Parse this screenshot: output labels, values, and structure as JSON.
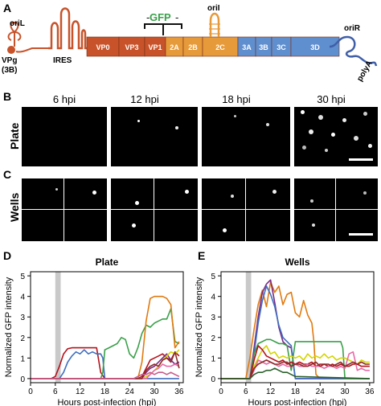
{
  "panels": {
    "a": "A",
    "b": "B",
    "c": "C",
    "d": "D",
    "e": "E"
  },
  "genome": {
    "gfp": "GFP",
    "oriL": "oriL",
    "vpg": "VPg",
    "vpg_sub": "(3B)",
    "ires": "IRES",
    "oriI": "oriI",
    "oriR": "oriR",
    "polyA": "polyA",
    "segments": [
      {
        "label": "VP0",
        "color": "#c8532a"
      },
      {
        "label": "VP3",
        "color": "#c8532a"
      },
      {
        "label": "VP1",
        "color": "#c8532a"
      },
      {
        "label": "2A",
        "color": "#e79a3a"
      },
      {
        "label": "2B",
        "color": "#e79a3a"
      },
      {
        "label": "2C",
        "color": "#e79a3a"
      },
      {
        "label": "3A",
        "color": "#5f8fcf"
      },
      {
        "label": "3B",
        "color": "#5f8fcf"
      },
      {
        "label": "3C",
        "color": "#5f8fcf"
      },
      {
        "label": "3D",
        "color": "#5f8fcf"
      }
    ]
  },
  "timepoints": [
    "6 hpi",
    "12 hpi",
    "18 hpi",
    "30 hpi"
  ],
  "rows": {
    "plate": "Plate",
    "wells": "Wells"
  },
  "chart_data": [
    {
      "type": "line",
      "title": "Plate",
      "xlabel": "Hours post-infection (hpi)",
      "ylabel": "Normalized GFP intensity",
      "xlim": [
        0,
        37
      ],
      "ylim": [
        -0.2,
        5.2
      ],
      "xticks": [
        0,
        6,
        12,
        18,
        24,
        30,
        36
      ],
      "yticks": [
        0,
        1,
        2,
        3,
        4,
        5
      ],
      "shaded_band": [
        6,
        7.3
      ],
      "series": [
        {
          "color": "#b5121b",
          "x": [
            0,
            5,
            6,
            7,
            8,
            9,
            10,
            11,
            12,
            13,
            14,
            15,
            16,
            17,
            18,
            19,
            20,
            21,
            22,
            23,
            24,
            25,
            26,
            27,
            28,
            29,
            30,
            31,
            32,
            33,
            34,
            35,
            36
          ],
          "y": [
            0,
            0,
            0.1,
            0.6,
            1.2,
            1.45,
            1.5,
            1.5,
            1.5,
            1.5,
            1.5,
            1.5,
            1.5,
            0.3,
            0,
            0,
            0,
            0,
            0,
            0,
            0,
            0,
            0,
            0.1,
            0.5,
            0.9,
            1.0,
            1.1,
            1.2,
            1.0,
            0.9,
            1.3,
            1.1
          ]
        },
        {
          "color": "#3f6fbf",
          "x": [
            0,
            7,
            8,
            9,
            10,
            11,
            12,
            13,
            14,
            15,
            16,
            17,
            17.5,
            18,
            36
          ],
          "y": [
            0,
            0,
            0.3,
            0.8,
            1.1,
            1.3,
            1.2,
            1.4,
            1.2,
            1.3,
            1.2,
            1.2,
            1.0,
            0,
            0
          ]
        },
        {
          "color": "#3aa04a",
          "x": [
            0,
            17,
            17.5,
            18,
            19,
            20,
            21,
            22,
            23,
            24,
            25,
            26,
            27,
            28,
            29,
            30,
            31,
            32,
            33,
            34,
            35,
            36
          ],
          "y": [
            0,
            0,
            0.3,
            1.4,
            1.5,
            1.6,
            1.7,
            2.0,
            1.9,
            1.2,
            1.0,
            1.5,
            2.2,
            2.6,
            2.5,
            2.7,
            2.8,
            2.9,
            2.9,
            3.4,
            1.8,
            1.7
          ]
        },
        {
          "color": "#e07a10",
          "x": [
            0,
            26,
            27,
            28,
            29,
            30,
            31,
            32,
            33,
            34,
            35,
            36
          ],
          "y": [
            0,
            0,
            0.8,
            2.8,
            3.9,
            4.0,
            4.0,
            4.0,
            3.9,
            3.6,
            1.5,
            1.8
          ]
        },
        {
          "color": "#7a2a86",
          "x": [
            0,
            27,
            28,
            29,
            30,
            31,
            32,
            33,
            34,
            35,
            36
          ],
          "y": [
            0,
            0,
            0.3,
            0.5,
            0.6,
            0.8,
            1.0,
            1.2,
            0.9,
            0.7,
            0.8
          ]
        },
        {
          "color": "#d4d400",
          "x": [
            0,
            27,
            28,
            29,
            30,
            31,
            32,
            33,
            34,
            35,
            36
          ],
          "y": [
            0,
            0,
            0.1,
            0.2,
            0.4,
            0.6,
            0.9,
            1.1,
            1.3,
            1.2,
            1.4
          ]
        },
        {
          "color": "#e86aa8",
          "x": [
            0,
            28,
            29,
            30,
            31,
            32,
            33,
            34,
            35,
            36
          ],
          "y": [
            0,
            0,
            0.2,
            0.4,
            0.5,
            0.7,
            0.6,
            0.6,
            0.7,
            0.6
          ]
        },
        {
          "color": "#8b2b2b",
          "x": [
            0,
            27,
            28,
            29,
            30,
            31,
            32,
            33,
            34,
            35,
            36
          ],
          "y": [
            0,
            0,
            0.4,
            0.6,
            0.7,
            0.6,
            0.9,
            1.0,
            0.8,
            1.3,
            0.5
          ]
        },
        {
          "color": "#c85a8a",
          "x": [
            0,
            25,
            26,
            27,
            28,
            29,
            30,
            31,
            32,
            33,
            34,
            35,
            36
          ],
          "y": [
            0,
            0,
            0.1,
            0.2,
            0.2,
            0.3,
            0.2,
            0.3,
            0.3,
            0.2,
            0.3,
            0.2,
            0.1
          ]
        }
      ]
    },
    {
      "type": "line",
      "title": "Wells",
      "xlabel": "Hours post-infection (hpi)",
      "ylabel": "Normalized GFP intensity",
      "xlim": [
        0,
        37
      ],
      "ylim": [
        -0.2,
        5.2
      ],
      "xticks": [
        0,
        6,
        12,
        18,
        24,
        30,
        36
      ],
      "yticks": [
        0,
        1,
        2,
        3,
        4,
        5
      ],
      "shaded_band": [
        6,
        7.3
      ],
      "series": [
        {
          "color": "#e07a10",
          "x": [
            0,
            6,
            7,
            8,
            9,
            10,
            11,
            12,
            13,
            14,
            15,
            16,
            17,
            18,
            19,
            20,
            21,
            22,
            22.5,
            23,
            24,
            36
          ],
          "y": [
            0,
            0,
            1.0,
            2.4,
            3.6,
            4.3,
            3.5,
            4.7,
            4.2,
            4.5,
            3.6,
            4.1,
            4.2,
            3.2,
            3.0,
            3.8,
            3.1,
            2.7,
            1.8,
            0.2,
            0,
            0
          ]
        },
        {
          "color": "#7a2a86",
          "x": [
            0,
            7,
            8,
            9,
            10,
            11,
            12,
            13,
            14,
            15,
            16,
            17,
            18,
            36
          ],
          "y": [
            0,
            0,
            1.5,
            3.0,
            4.2,
            4.6,
            4.8,
            3.7,
            2.5,
            1.8,
            1.6,
            1.5,
            0,
            0
          ]
        },
        {
          "color": "#3f6fbf",
          "x": [
            0,
            7,
            8,
            9,
            10,
            11,
            12,
            13,
            14,
            15,
            16,
            17,
            18,
            36
          ],
          "y": [
            0,
            0,
            1.2,
            2.7,
            3.8,
            4.5,
            4.1,
            3.5,
            2.6,
            2.0,
            1.8,
            1.6,
            0,
            0
          ]
        },
        {
          "color": "#3aa04a",
          "x": [
            0,
            7,
            8,
            9,
            10,
            11,
            12,
            13,
            14,
            15,
            16,
            17,
            18,
            19,
            20,
            21,
            22,
            23,
            24,
            25,
            26,
            27,
            28,
            29,
            29.5,
            30,
            36
          ],
          "y": [
            0,
            0,
            1.2,
            1.7,
            1.8,
            1.9,
            1.9,
            1.8,
            1.7,
            1.7,
            1.6,
            0.4,
            1.8,
            1.8,
            1.8,
            1.8,
            1.8,
            1.8,
            1.8,
            1.8,
            1.8,
            1.8,
            1.8,
            1.8,
            1.5,
            0,
            0
          ]
        },
        {
          "color": "#d4d400",
          "x": [
            0,
            7,
            8,
            9,
            10,
            11,
            12,
            13,
            14,
            15,
            16,
            17,
            18,
            19,
            20,
            21,
            22,
            23,
            24,
            25,
            26,
            27,
            28,
            29,
            30,
            31,
            32,
            33,
            34,
            35,
            36
          ],
          "y": [
            0,
            0,
            0.6,
            1.0,
            1.4,
            1.6,
            1.2,
            1.3,
            1.0,
            1.1,
            1.0,
            1.1,
            1.0,
            1.1,
            0.9,
            1.2,
            1.0,
            1.1,
            1.0,
            1.2,
            1.0,
            1.1,
            0.9,
            1.0,
            1.0,
            0.9,
            0.8,
            0.7,
            0.9,
            0.8,
            0.8
          ]
        },
        {
          "color": "#b5121b",
          "x": [
            0,
            7,
            8,
            9,
            10,
            11,
            12,
            13,
            14,
            15,
            16,
            17,
            18,
            19,
            20,
            21,
            22,
            23,
            24,
            25,
            26,
            27,
            28,
            29,
            30,
            31,
            32,
            33,
            34,
            35,
            36
          ],
          "y": [
            0,
            0,
            0.9,
            1.6,
            1.4,
            1.1,
            1.0,
            0.9,
            0.8,
            0.9,
            0.7,
            0.8,
            0.7,
            0.8,
            0.7,
            0.7,
            0.8,
            0.6,
            0.7,
            0.7,
            0.6,
            0.7,
            0.6,
            0.7,
            0.6,
            0.6,
            0.7,
            0.7,
            0.6,
            0.6,
            0.6
          ]
        },
        {
          "color": "#e86aa8",
          "x": [
            0,
            7,
            8,
            9,
            10,
            11,
            12,
            13,
            14,
            15,
            16,
            17,
            18,
            19,
            20,
            21,
            22,
            23,
            24,
            25,
            26,
            27,
            28,
            29,
            30,
            31,
            32,
            33,
            34,
            35,
            36
          ],
          "y": [
            0,
            0,
            0.4,
            0.9,
            0.8,
            0.7,
            0.8,
            0.7,
            0.6,
            0.7,
            0.6,
            0.6,
            0.7,
            0.6,
            0.6,
            0.7,
            0.6,
            0.6,
            0.6,
            0.5,
            0.6,
            0.6,
            0.5,
            0.6,
            0.5,
            1.2,
            1.3,
            0.4,
            0.5,
            0.4,
            0.4
          ]
        },
        {
          "color": "#8b2b2b",
          "x": [
            0,
            7,
            8,
            9,
            10,
            11,
            12,
            13,
            14,
            15,
            16,
            17,
            18,
            19,
            20,
            21,
            22,
            23,
            24,
            25,
            26,
            27,
            28,
            29,
            30,
            31,
            32,
            33,
            34,
            35,
            36
          ],
          "y": [
            0,
            0,
            0.5,
            0.7,
            0.8,
            0.9,
            0.8,
            0.7,
            0.7,
            0.8,
            0.8,
            0.6,
            0.7,
            0.7,
            0.6,
            0.6,
            0.7,
            0.8,
            0.6,
            0.7,
            0.7,
            0.6,
            0.7,
            0.8,
            0.6,
            0.7,
            0.8,
            0.7,
            0.8,
            0.7,
            0.7
          ]
        },
        {
          "color": "#2b5f2b",
          "x": [
            0,
            7,
            8,
            9,
            10,
            11,
            12,
            13,
            14,
            15,
            16,
            17,
            18,
            36
          ],
          "y": [
            0,
            0,
            0.2,
            0.3,
            0.3,
            0.4,
            0.4,
            0.5,
            0.4,
            0.3,
            0.3,
            0.2,
            0.1,
            0
          ]
        }
      ]
    }
  ]
}
